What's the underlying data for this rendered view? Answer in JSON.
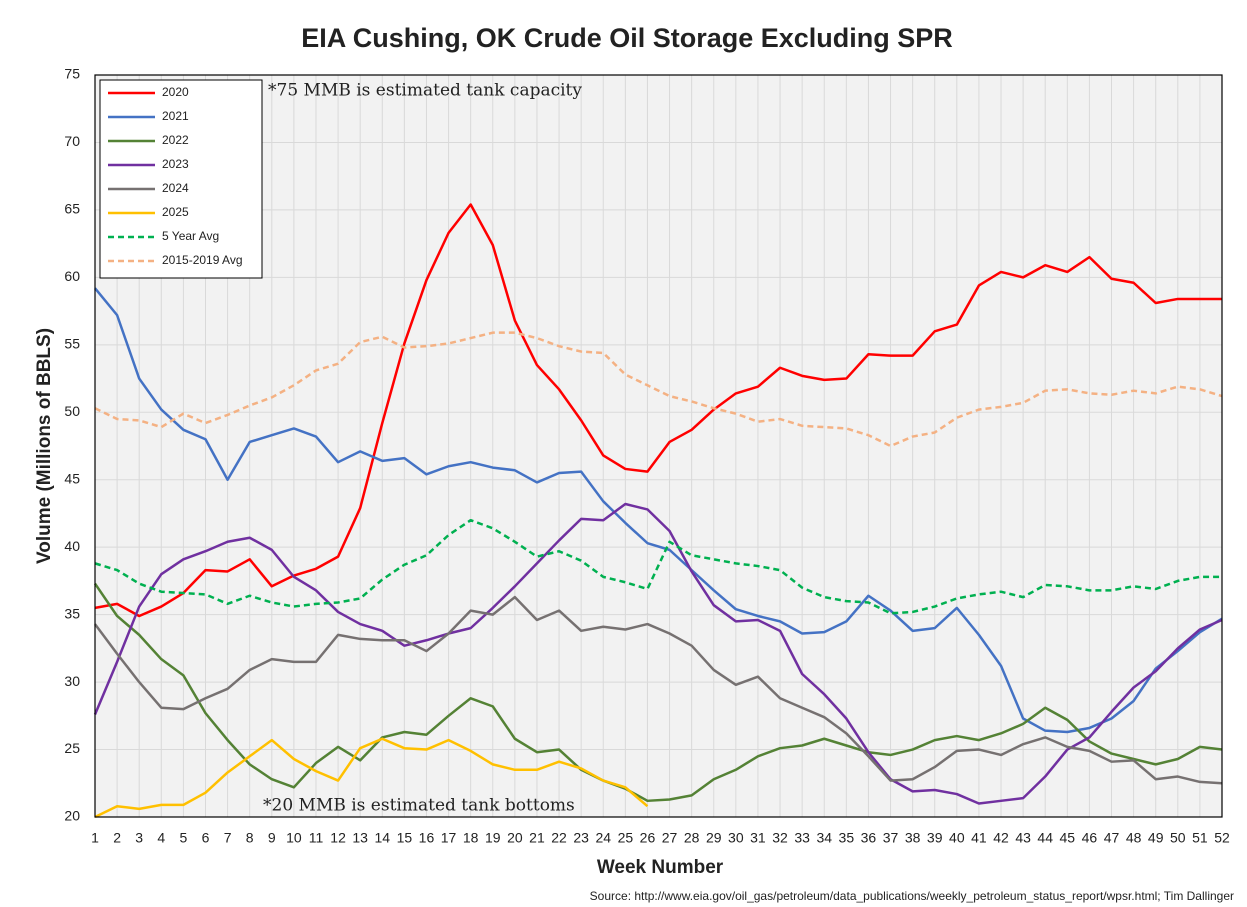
{
  "chart_data": {
    "type": "line",
    "title": "EIA Cushing, OK Crude Oil Storage Excluding SPR",
    "x_label": "Week Number",
    "y_label": "Volume (Millions of BBLS)",
    "annotations": [
      "*75 MMB is estimated tank capacity",
      "*20 MMB is estimated tank bottoms"
    ],
    "source": "Source: http://www.eia.gov/oil_gas/petroleum/data_publications/weekly_petroleum_status_report/wpsr.html; Tim Dallinger",
    "x": [
      1,
      2,
      3,
      4,
      5,
      6,
      7,
      8,
      9,
      10,
      11,
      12,
      13,
      14,
      15,
      16,
      17,
      18,
      19,
      20,
      21,
      22,
      23,
      24,
      25,
      26,
      27,
      28,
      29,
      30,
      31,
      32,
      33,
      34,
      35,
      36,
      37,
      38,
      39,
      40,
      41,
      42,
      43,
      44,
      45,
      46,
      47,
      48,
      49,
      50,
      51,
      52
    ],
    "xlim": [
      1,
      52
    ],
    "ylim": [
      20,
      75
    ],
    "yticks": [
      20,
      25,
      30,
      35,
      40,
      45,
      50,
      55,
      60,
      65,
      70,
      75
    ],
    "grid": true,
    "legend": "top-left",
    "series": [
      {
        "name": "2020",
        "color": "#ff0000",
        "style": "solid",
        "values": [
          35.5,
          35.8,
          34.9,
          35.6,
          36.6,
          38.3,
          38.2,
          39.1,
          37.1,
          37.9,
          38.4,
          39.3,
          42.9,
          49.2,
          55.1,
          59.8,
          63.3,
          65.4,
          62.4,
          56.8,
          53.5,
          51.7,
          49.4,
          46.8,
          45.8,
          45.6,
          47.8,
          48.7,
          50.2,
          51.4,
          51.9,
          53.3,
          52.7,
          52.4,
          52.5,
          54.3,
          54.2,
          54.2,
          56.0,
          56.5,
          59.4,
          60.4,
          60.0,
          60.9,
          60.4,
          61.5,
          59.9,
          59.6,
          58.1,
          58.4,
          58.4,
          58.4
        ]
      },
      {
        "name": "2021",
        "color": "#4472c4",
        "style": "solid",
        "values": [
          59.2,
          57.2,
          52.5,
          50.2,
          48.7,
          48.0,
          45.0,
          47.8,
          48.3,
          48.8,
          48.2,
          46.3,
          47.1,
          46.4,
          46.6,
          45.4,
          46.0,
          46.3,
          45.9,
          45.7,
          44.8,
          45.5,
          45.6,
          43.4,
          41.8,
          40.3,
          39.8,
          38.3,
          36.8,
          35.4,
          34.9,
          34.5,
          33.6,
          33.7,
          34.5,
          36.4,
          35.3,
          33.8,
          34.0,
          35.5,
          33.5,
          31.2,
          27.3,
          26.4,
          26.3,
          26.6,
          27.3,
          28.6,
          31.0,
          32.3,
          33.7,
          34.7
        ]
      },
      {
        "name": "2022",
        "color": "#548235",
        "style": "solid",
        "values": [
          37.3,
          34.9,
          33.5,
          31.7,
          30.5,
          27.7,
          25.7,
          23.9,
          22.8,
          22.2,
          24.0,
          25.2,
          24.2,
          25.9,
          26.3,
          26.1,
          27.5,
          28.8,
          28.2,
          25.8,
          24.8,
          25.0,
          23.5,
          22.7,
          22.1,
          21.2,
          21.3,
          21.6,
          22.8,
          23.5,
          24.5,
          25.1,
          25.3,
          25.8,
          25.3,
          24.8,
          24.6,
          25.0,
          25.7,
          26.0,
          25.7,
          26.2,
          26.9,
          28.1,
          27.2,
          25.6,
          24.7,
          24.3,
          23.9,
          24.3,
          25.2,
          25.0
        ]
      },
      {
        "name": "2023",
        "color": "#7030a0",
        "style": "solid",
        "values": [
          27.6,
          31.5,
          35.6,
          38.0,
          39.1,
          39.7,
          40.4,
          40.7,
          39.8,
          37.8,
          36.8,
          35.2,
          34.3,
          33.8,
          32.7,
          33.1,
          33.6,
          34.0,
          35.5,
          37.1,
          38.8,
          40.5,
          42.1,
          42.0,
          43.2,
          42.8,
          41.2,
          38.2,
          35.7,
          34.5,
          34.6,
          33.8,
          30.6,
          29.1,
          27.3,
          24.8,
          22.8,
          21.9,
          22.0,
          21.7,
          21.0,
          21.2,
          21.4,
          23.0,
          25.0,
          25.9,
          27.8,
          29.6,
          30.8,
          32.5,
          33.9,
          34.6
        ]
      },
      {
        "name": "2024",
        "color": "#767171",
        "style": "solid",
        "values": [
          34.3,
          32.1,
          30.0,
          28.1,
          28.0,
          28.8,
          29.5,
          30.9,
          31.7,
          31.5,
          31.5,
          33.5,
          33.2,
          33.1,
          33.1,
          32.3,
          33.6,
          35.3,
          35.0,
          36.3,
          34.6,
          35.3,
          33.8,
          34.1,
          33.9,
          34.3,
          33.6,
          32.7,
          30.9,
          29.8,
          30.4,
          28.8,
          28.1,
          27.4,
          26.2,
          24.5,
          22.7,
          22.8,
          23.7,
          24.9,
          25.0,
          24.6,
          25.4,
          25.9,
          25.2,
          24.9,
          24.1,
          24.2,
          22.8,
          23.0,
          22.6,
          22.5
        ]
      },
      {
        "name": "2025",
        "color": "#ffc000",
        "style": "solid",
        "values": [
          20.0,
          20.8,
          20.6,
          20.9,
          20.9,
          21.8,
          23.3,
          24.5,
          25.7,
          24.3,
          23.4,
          22.7,
          25.1,
          25.8,
          25.1,
          25.0,
          25.7,
          24.9,
          23.9,
          23.5,
          23.5,
          24.1,
          23.6,
          22.7,
          22.2,
          20.8,
          null,
          null,
          null,
          null,
          null,
          null,
          null,
          null,
          null,
          null,
          null,
          null,
          null,
          null,
          null,
          null,
          null,
          null,
          null,
          null,
          null,
          null,
          null,
          null,
          null,
          null
        ]
      },
      {
        "name": "5 Year Avg",
        "color": "#00b050",
        "style": "dashed",
        "values": [
          38.8,
          38.3,
          37.3,
          36.7,
          36.6,
          36.5,
          35.8,
          36.4,
          35.9,
          35.6,
          35.8,
          35.9,
          36.2,
          37.6,
          38.7,
          39.4,
          40.9,
          42.0,
          41.4,
          40.4,
          39.3,
          39.7,
          39.0,
          37.8,
          37.4,
          36.9,
          40.4,
          39.4,
          39.1,
          38.8,
          38.6,
          38.3,
          37.0,
          36.3,
          36.0,
          35.9,
          35.1,
          35.2,
          35.6,
          36.2,
          36.5,
          36.7,
          36.3,
          37.2,
          37.1,
          36.8,
          36.8,
          37.1,
          36.9,
          37.5,
          37.8,
          37.8
        ]
      },
      {
        "name": "2015-2019 Avg",
        "color": "#f4b183",
        "style": "dashed",
        "values": [
          50.3,
          49.5,
          49.4,
          48.9,
          49.9,
          49.2,
          49.8,
          50.5,
          51.1,
          52.0,
          53.1,
          53.6,
          55.2,
          55.6,
          54.8,
          54.9,
          55.1,
          55.5,
          55.9,
          55.9,
          55.5,
          54.9,
          54.5,
          54.4,
          52.8,
          52.0,
          51.2,
          50.8,
          50.3,
          49.9,
          49.3,
          49.5,
          49.0,
          48.9,
          48.8,
          48.3,
          47.5,
          48.2,
          48.5,
          49.6,
          50.2,
          50.4,
          50.7,
          51.6,
          51.7,
          51.4,
          51.3,
          51.6,
          51.4,
          51.9,
          51.7,
          51.2
        ]
      }
    ]
  }
}
